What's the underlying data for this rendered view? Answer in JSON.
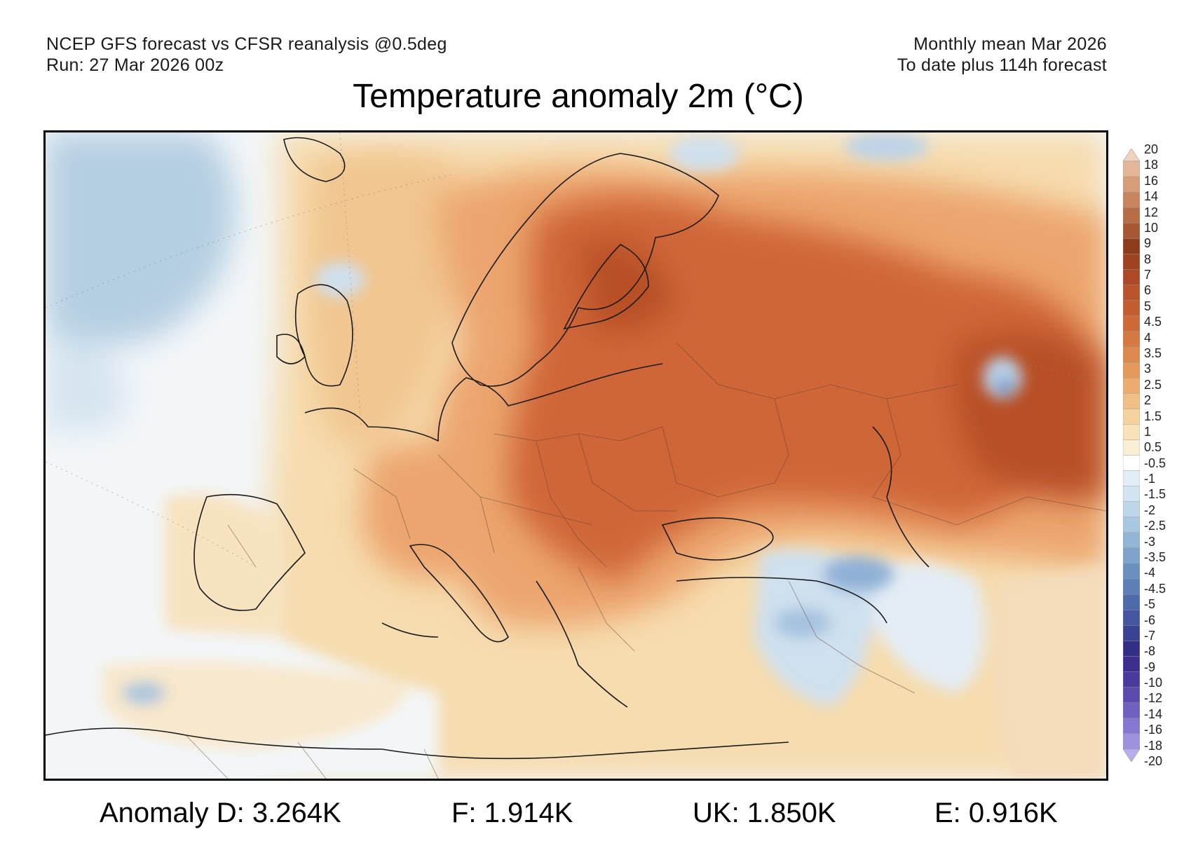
{
  "header": {
    "left_line1": "NCEP GFS forecast vs CFSR reanalysis @0.5deg",
    "left_line2": "Run: 27 Mar 2026 00z",
    "right_line1": "Monthly mean Mar 2026",
    "right_line2": "To date plus 114h forecast"
  },
  "title": "Temperature anomaly 2m (°C)",
  "colorbar": {
    "labels": [
      "20",
      "18",
      "16",
      "14",
      "12",
      "10",
      "9",
      "8",
      "7",
      "6",
      "5",
      "4.5",
      "4",
      "3.5",
      "3",
      "2.5",
      "2",
      "1.5",
      "1",
      "0.5",
      "-0.5",
      "-1",
      "-1.5",
      "-2",
      "-2.5",
      "-3",
      "-3.5",
      "-4",
      "-4.5",
      "-5",
      "-6",
      "-7",
      "-8",
      "-9",
      "-10",
      "-12",
      "-14",
      "-16",
      "-18",
      "-20"
    ],
    "colors": [
      "#f1d2bf",
      "#e5b597",
      "#d79d78",
      "#c8845d",
      "#b76d46",
      "#a65834",
      "#8f3c1c",
      "#9e4220",
      "#ab4a25",
      "#b9542b",
      "#c25e30",
      "#cd6a38",
      "#d67841",
      "#de894d",
      "#e59a5c",
      "#ecac6f",
      "#f1bf86",
      "#f5d29e",
      "#f8e2b8",
      "#faf0d6",
      "#ffffff",
      "#e3eef7",
      "#d2e4f2",
      "#bed6ea",
      "#a8c7e0",
      "#93b6d6",
      "#7fa4cb",
      "#6a90c0",
      "#5c7fb7",
      "#4f6aab",
      "#43569f",
      "#3a4393",
      "#342f86",
      "#3d2e8f",
      "#4b3a9e",
      "#5c4aae",
      "#7060c0",
      "#8678d0",
      "#9e92de",
      "#b8aeea"
    ]
  },
  "footer": {
    "d": "Anomaly D: 3.264K",
    "f": "F: 1.914K",
    "uk": "UK: 1.850K",
    "e": "E: 0.916K"
  },
  "map": {
    "region": "Europe",
    "colors": {
      "ocean_neutral": "#f3f6f8",
      "cold_atlantic": "#b5cfe2",
      "mild": "#f6dcae",
      "warm": "#eca56e",
      "hot": "#cf6637",
      "very_hot": "#b84f26",
      "coast_line": "#1a1a1a",
      "cold_spot": "#6b8fc4"
    }
  }
}
